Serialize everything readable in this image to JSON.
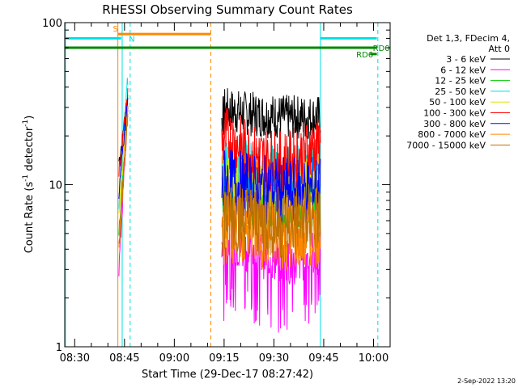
{
  "chart_data": {
    "type": "line",
    "title": "RHESSI Observing Summary Count Rates",
    "xlabel": "Start Time (29-Dec-17 08:27:42)",
    "ylabel_main": "Count Rate (s",
    "ylabel_exp1": "-1",
    "ylabel_mid": " detector",
    "ylabel_exp2": "-1",
    "ylabel_end": ")",
    "y_scale": "log",
    "ylim": [
      1,
      100
    ],
    "xlim_minutes": [
      507,
      605
    ],
    "x_ticks": [
      {
        "label": "08:30",
        "minutes": 510
      },
      {
        "label": "08:45",
        "minutes": 525
      },
      {
        "label": "09:00",
        "minutes": 540
      },
      {
        "label": "09:15",
        "minutes": 555
      },
      {
        "label": "09:30",
        "minutes": 570
      },
      {
        "label": "09:45",
        "minutes": 585
      },
      {
        "label": "10:00",
        "minutes": 600
      }
    ],
    "y_ticks": [
      {
        "label": "1",
        "value": 1
      },
      {
        "label": "10",
        "value": 10
      },
      {
        "label": "100",
        "value": 100
      }
    ],
    "legend_header_1": "Det 1,3, FDecim 4,",
    "legend_header_2": "Att 0",
    "legend_position": "right",
    "series": [
      {
        "name": "3 - 6 keV",
        "color": "#000000",
        "seg1": [
          14,
          30
        ],
        "seg2": [
          {
            "t": 555,
            "v": 29
          },
          {
            "t": 565,
            "v": 27
          },
          {
            "t": 575,
            "v": 26
          },
          {
            "t": 585,
            "v": 26
          }
        ]
      },
      {
        "name": "6 - 12 keV",
        "color": "#ff00ff",
        "seg1": [
          3,
          30
        ],
        "seg2": [
          {
            "t": 555,
            "v": 4.6
          },
          {
            "t": 565,
            "v": 3.8
          },
          {
            "t": 575,
            "v": 3.3
          },
          {
            "t": 585,
            "v": 4.0
          }
        ]
      },
      {
        "name": "12 - 25 keV",
        "color": "#00cc00",
        "seg1": [
          5,
          33
        ],
        "seg2": [
          {
            "t": 555,
            "v": 8.5
          },
          {
            "t": 565,
            "v": 7.5
          },
          {
            "t": 575,
            "v": 7.3
          },
          {
            "t": 585,
            "v": 8.3
          }
        ]
      },
      {
        "name": "25 - 50 keV",
        "color": "#00e0e0",
        "seg1": [
          8,
          45
        ],
        "seg2": [
          {
            "t": 555,
            "v": 14
          },
          {
            "t": 565,
            "v": 12
          },
          {
            "t": 575,
            "v": 11.5
          },
          {
            "t": 585,
            "v": 13
          }
        ]
      },
      {
        "name": "50 - 100 keV",
        "color": "#e0e000",
        "seg1": [
          7,
          34
        ],
        "seg2": [
          {
            "t": 555,
            "v": 11
          },
          {
            "t": 565,
            "v": 10
          },
          {
            "t": 575,
            "v": 9.5
          },
          {
            "t": 585,
            "v": 10.5
          }
        ]
      },
      {
        "name": "100 - 300 keV",
        "color": "#ff0000",
        "seg1": [
          12,
          37
        ],
        "seg2": [
          {
            "t": 555,
            "v": 20
          },
          {
            "t": 565,
            "v": 14.5
          },
          {
            "t": 575,
            "v": 14
          },
          {
            "t": 585,
            "v": 18
          }
        ]
      },
      {
        "name": "300 - 800 keV",
        "color": "#0000ff",
        "seg1": [
          9,
          33
        ],
        "seg2": [
          {
            "t": 555,
            "v": 10.5
          },
          {
            "t": 565,
            "v": 9.5
          },
          {
            "t": 575,
            "v": 9
          },
          {
            "t": 585,
            "v": 9.5
          }
        ]
      },
      {
        "name": "800 - 7000 keV",
        "color": "#ff8800",
        "seg1": [
          4,
          30
        ],
        "seg2": [
          {
            "t": 555,
            "v": 5.5
          },
          {
            "t": 565,
            "v": 5.0
          },
          {
            "t": 575,
            "v": 4.8
          },
          {
            "t": 585,
            "v": 5.2
          }
        ]
      },
      {
        "name": "7000 - 15000 keV",
        "color": "#c07000",
        "seg1": [
          4,
          28
        ],
        "seg2": [
          {
            "t": 555,
            "v": 6.5
          },
          {
            "t": 565,
            "v": 6.0
          },
          {
            "t": 575,
            "v": 5.8
          },
          {
            "t": 585,
            "v": 6.2
          }
        ]
      }
    ],
    "seg1_time": [
      523.3,
      526.0
    ],
    "seg2_time": [
      554.3,
      584.0
    ],
    "annotations": {
      "S_label": "S",
      "N_label": "N",
      "RD0_label": "RD0",
      "RD6_label": "RD6"
    },
    "bars": [
      {
        "id": "S",
        "color": "#ff8800",
        "from": 523,
        "to": 551,
        "y": 85
      },
      {
        "id": "N-left",
        "color": "#00e0e0",
        "from": 507,
        "to": 524,
        "y": 80
      },
      {
        "id": "N-right",
        "color": "#00e0e0",
        "from": 584,
        "to": 601,
        "y": 80
      },
      {
        "id": "RD0",
        "color": "#008800",
        "from": 507,
        "to": 601,
        "y": 70
      },
      {
        "id": "RD6",
        "color": "#008800",
        "from": 599,
        "to": 601,
        "y": 64
      }
    ],
    "vlines": [
      {
        "color": "#00e0e0",
        "t": 507.2,
        "dashed": false
      },
      {
        "color": "#ff8800",
        "t": 523.0,
        "dashed": false
      },
      {
        "color": "#00e0e0",
        "t": 524.3,
        "dashed": false
      },
      {
        "color": "#00e0e0",
        "t": 526.7,
        "dashed": true
      },
      {
        "color": "#ff8800",
        "t": 551.0,
        "dashed": true
      },
      {
        "color": "#00e0e0",
        "t": 584.0,
        "dashed": false
      },
      {
        "color": "#00e0e0",
        "t": 601.3,
        "dashed": true
      }
    ]
  },
  "footer_date": "2-Sep-2022 13:20"
}
